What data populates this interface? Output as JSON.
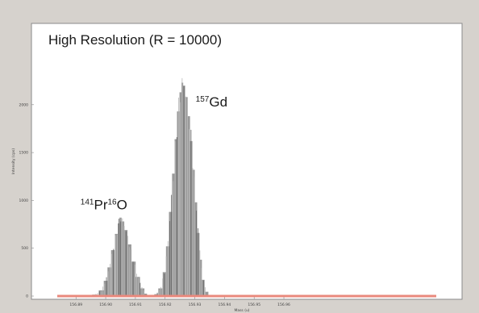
{
  "chart_data": {
    "type": "bar",
    "title": "High Resolution (R = 10000)",
    "xlabel": "Mass (u)",
    "ylabel": "Intensity (cps)",
    "xlim": [
      156.875,
      157.02
    ],
    "ylim": [
      0,
      2850
    ],
    "x_ticks": [
      "156.89",
      "156.90",
      "156.91",
      "156.92",
      "156.93",
      "156.94",
      "156.95",
      "156.96"
    ],
    "y_ticks": [
      "0",
      "500",
      "1000",
      "1500",
      "2000"
    ],
    "annotations": [
      {
        "id": "pr",
        "mass": "141",
        "element": "Pr",
        "mass2": "16",
        "element2": "O",
        "x": 156.904,
        "y": 940
      },
      {
        "id": "gd",
        "mass": "157",
        "element": "Gd",
        "x": 156.9265,
        "y": 2015
      }
    ],
    "baseline_color": "#e9897d",
    "bar_color": "#9a9a9a",
    "series": [
      {
        "id": "praseodymium-oxide-peak",
        "x": [
          156.8963,
          156.8986,
          156.9,
          156.9012,
          156.9024,
          156.9036,
          156.9044,
          156.905,
          156.9058,
          156.9068,
          156.908,
          156.9094,
          156.9108,
          156.9124,
          156.9134
        ],
        "values": [
          15,
          60,
          160,
          300,
          480,
          650,
          760,
          820,
          780,
          690,
          540,
          360,
          200,
          80,
          25
        ]
      },
      {
        "id": "gadolinium-157-peak",
        "x": [
          156.917,
          156.9184,
          156.9198,
          156.9208,
          156.9218,
          156.9228,
          156.9236,
          156.9244,
          156.9252,
          156.9258,
          156.9264,
          156.9272,
          156.928,
          156.9288,
          156.9296,
          156.9304,
          156.9312,
          156.932,
          156.9328,
          156.934
        ],
        "values": [
          20,
          80,
          250,
          520,
          880,
          1280,
          1640,
          1930,
          2130,
          2230,
          2200,
          2080,
          1880,
          1620,
          1320,
          980,
          660,
          380,
          170,
          45
        ]
      }
    ]
  }
}
